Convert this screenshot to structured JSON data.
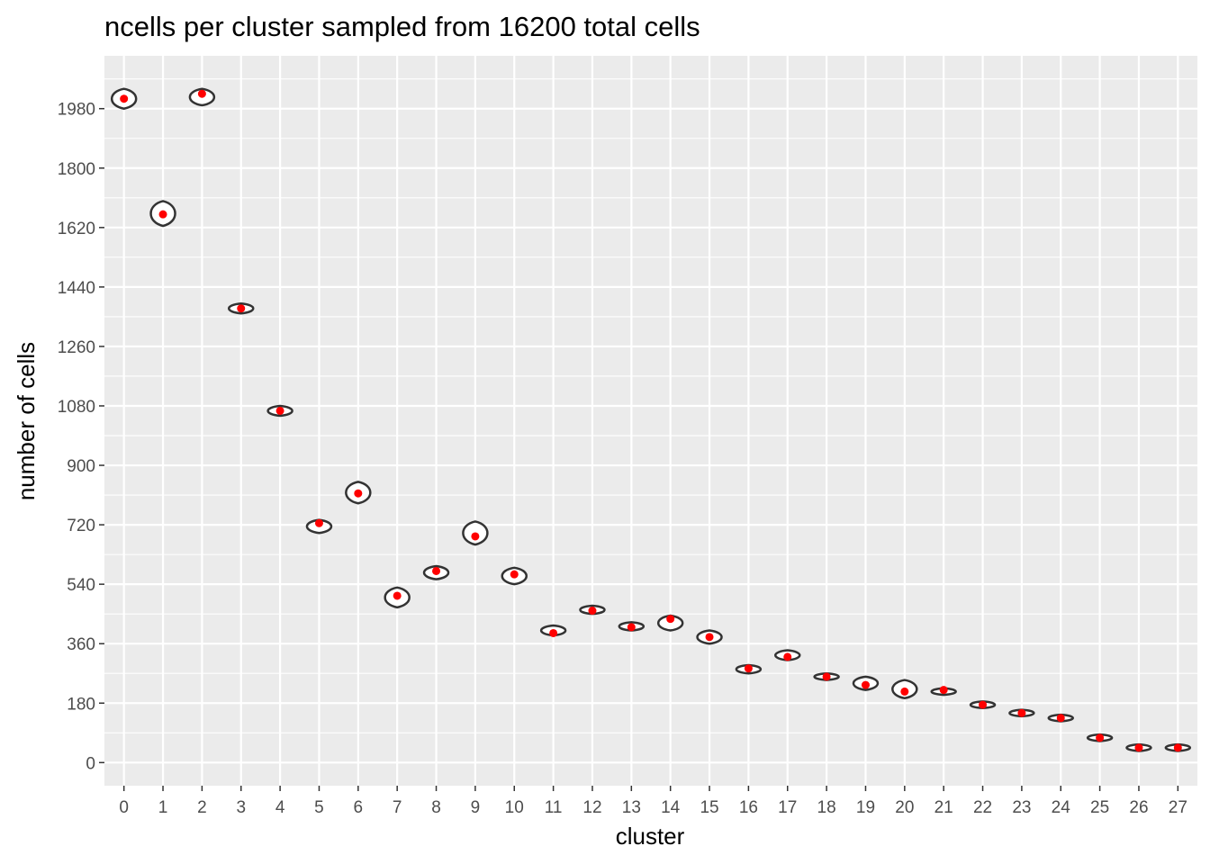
{
  "chart_data": {
    "type": "violin",
    "title": "ncells per cluster sampled from 16200 total cells",
    "xlabel": "cluster",
    "ylabel": "number of cells",
    "categories": [
      "0",
      "1",
      "2",
      "3",
      "4",
      "5",
      "6",
      "7",
      "8",
      "9",
      "10",
      "11",
      "12",
      "13",
      "14",
      "15",
      "16",
      "17",
      "18",
      "19",
      "20",
      "21",
      "22",
      "23",
      "24",
      "25",
      "26",
      "27"
    ],
    "y_ticks": [
      0,
      180,
      360,
      540,
      720,
      900,
      1080,
      1260,
      1440,
      1620,
      1800,
      1980
    ],
    "ylim": [
      -70,
      2140
    ],
    "grid": true,
    "means": [
      2010,
      1660,
      2025,
      1375,
      1065,
      725,
      815,
      505,
      580,
      685,
      570,
      392,
      460,
      410,
      435,
      380,
      285,
      320,
      260,
      235,
      215,
      220,
      175,
      150,
      135,
      75,
      45,
      45
    ],
    "ranges": [
      [
        1980,
        2040
      ],
      [
        1625,
        1700
      ],
      [
        1990,
        2040
      ],
      [
        1360,
        1390
      ],
      [
        1050,
        1080
      ],
      [
        695,
        735
      ],
      [
        785,
        850
      ],
      [
        470,
        530
      ],
      [
        555,
        595
      ],
      [
        660,
        730
      ],
      [
        540,
        590
      ],
      [
        385,
        415
      ],
      [
        450,
        475
      ],
      [
        400,
        425
      ],
      [
        400,
        445
      ],
      [
        360,
        400
      ],
      [
        270,
        295
      ],
      [
        310,
        340
      ],
      [
        250,
        270
      ],
      [
        220,
        260
      ],
      [
        195,
        250
      ],
      [
        205,
        225
      ],
      [
        165,
        185
      ],
      [
        140,
        160
      ],
      [
        125,
        145
      ],
      [
        65,
        85
      ],
      [
        35,
        55
      ],
      [
        35,
        55
      ]
    ],
    "colors": {
      "panel": "#ebebeb",
      "grid": "#ffffff",
      "violin_stroke": "#333333",
      "mean_point": "#ff0000",
      "tick_text": "#4d4d4d"
    }
  }
}
